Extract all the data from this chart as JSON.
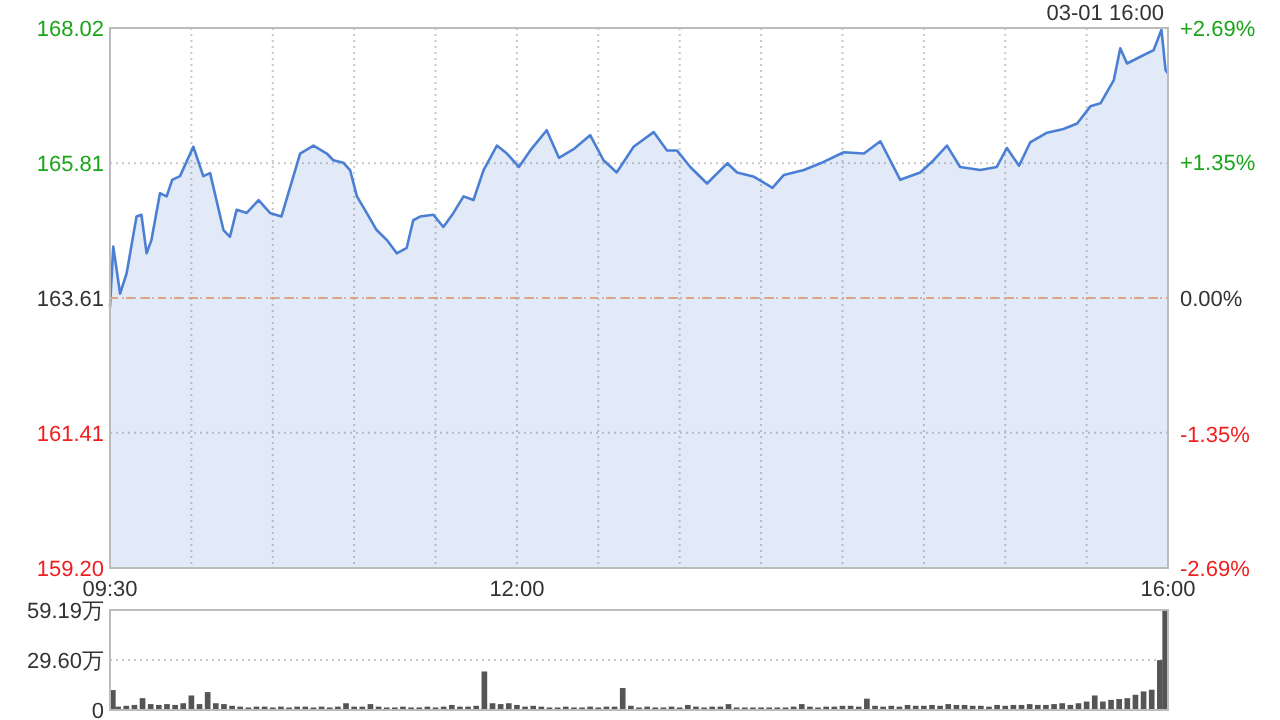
{
  "chart_data": [
    {
      "type": "area",
      "annotations": [
        "03-01 16:00"
      ],
      "x": [
        9.5,
        9.52,
        9.562,
        9.602,
        9.663,
        9.693,
        9.725,
        9.755,
        9.807,
        9.848,
        9.882,
        9.93,
        10.012,
        10.073,
        10.115,
        10.197,
        10.237,
        10.278,
        10.34,
        10.413,
        10.483,
        10.553,
        10.627,
        10.668,
        10.75,
        10.832,
        10.872,
        10.933,
        10.975,
        11.017,
        11.077,
        11.138,
        11.2,
        11.262,
        11.323,
        11.363,
        11.405,
        11.487,
        11.548,
        11.61,
        11.672,
        11.733,
        11.795,
        11.877,
        11.938,
        12.012,
        12.082,
        12.183,
        12.258,
        12.348,
        12.45,
        12.532,
        12.613,
        12.717,
        12.84,
        12.922,
        12.983,
        13.065,
        13.168,
        13.292,
        13.353,
        13.457,
        13.57,
        13.64,
        13.763,
        13.865,
        14.008,
        14.132,
        14.233,
        14.355,
        14.478,
        14.56,
        14.642,
        14.723,
        14.847,
        14.948,
        15.01,
        15.085,
        15.153,
        15.257,
        15.358,
        15.442,
        15.523,
        15.585,
        15.667,
        15.707,
        15.748,
        15.83,
        15.912,
        15.96,
        15.985,
        16
      ],
      "series": [
        {
          "color": "#4a7fd4",
          "values": [
            163.47,
            164.45,
            163.68,
            164.01,
            164.94,
            164.97,
            164.34,
            164.56,
            165.32,
            165.27,
            165.54,
            165.6,
            166.08,
            165.6,
            165.65,
            164.72,
            164.61,
            165.05,
            165.0,
            165.21,
            165.0,
            164.94,
            165.6,
            165.97,
            166.1,
            165.97,
            165.86,
            165.82,
            165.7,
            165.27,
            165.0,
            164.72,
            164.56,
            164.34,
            164.43,
            164.88,
            164.94,
            164.97,
            164.77,
            165.0,
            165.27,
            165.21,
            165.7,
            166.1,
            165.97,
            165.75,
            166.02,
            166.35,
            165.9,
            166.04,
            166.27,
            165.86,
            165.66,
            166.08,
            166.32,
            166.02,
            166.02,
            165.75,
            165.48,
            165.81,
            165.66,
            165.59,
            165.41,
            165.62,
            165.7,
            165.81,
            165.99,
            165.97,
            166.17,
            165.54,
            165.66,
            165.86,
            166.1,
            165.75,
            165.7,
            165.75,
            166.06,
            165.77,
            166.15,
            166.31,
            166.37,
            166.46,
            166.74,
            166.79,
            167.17,
            167.69,
            167.44,
            167.55,
            167.66,
            167.99,
            167.33,
            167.28
          ]
        }
      ],
      "xlim": [
        9.5,
        16
      ],
      "xticks": [
        {
          "value": 9.5,
          "label": "09:30"
        },
        {
          "value": 10,
          "label": null
        },
        {
          "value": 10.5,
          "label": null
        },
        {
          "value": 11,
          "label": null
        },
        {
          "value": 11.5,
          "label": null
        },
        {
          "value": 12,
          "label": "12:00"
        },
        {
          "value": 12.5,
          "label": null
        },
        {
          "value": 13,
          "label": null
        },
        {
          "value": 13.5,
          "label": null
        },
        {
          "value": 14,
          "label": null
        },
        {
          "value": 14.5,
          "label": null
        },
        {
          "value": 15,
          "label": null
        },
        {
          "value": 15.5,
          "label": null
        },
        {
          "value": 16,
          "label": "16:00"
        }
      ],
      "ylim": [
        159.2,
        168.02
      ],
      "yticks": [
        {
          "value": 159.2,
          "label": "159.20"
        },
        161.41,
        163.61,
        165.81,
        168.02
      ],
      "y2lim": [
        -2.69,
        2.69
      ],
      "y2ticks": [
        {
          "value": -2.69,
          "label": "-2.69%"
        },
        {
          "value": -1.35,
          "label": "-1.35%"
        },
        {
          "value": 0,
          "label": "0.00%"
        },
        {
          "value": 1.35,
          "label": "+1.35%"
        },
        {
          "value": 2.69,
          "label": "+2.69%"
        }
      ],
      "ref_lines": [
        {
          "axis": "y",
          "value": 163.61,
          "color": "#e8a07a",
          "line_style": "dashed"
        }
      ],
      "grid": true
    },
    {
      "type": "bar",
      "color": "#555555",
      "tick_labels": "y",
      "grid": "y",
      "x": [
        9.5,
        9.55,
        9.6,
        9.65,
        9.7,
        9.75,
        9.8,
        9.85,
        9.9,
        9.95,
        10,
        10.05,
        10.1,
        10.15,
        10.2,
        10.25,
        10.3,
        10.35,
        10.4,
        10.45,
        10.5,
        10.55,
        10.6,
        10.65,
        10.7,
        10.75,
        10.8,
        10.85,
        10.9,
        10.95,
        11,
        11.05,
        11.1,
        11.15,
        11.2,
        11.25,
        11.3,
        11.35,
        11.4,
        11.45,
        11.5,
        11.55,
        11.6,
        11.65,
        11.7,
        11.75,
        11.8,
        11.85,
        11.9,
        11.95,
        12,
        12.05,
        12.1,
        12.15,
        12.2,
        12.25,
        12.3,
        12.35,
        12.4,
        12.45,
        12.5,
        12.55,
        12.6,
        12.65,
        12.7,
        12.75,
        12.8,
        12.85,
        12.9,
        12.95,
        13,
        13.05,
        13.1,
        13.15,
        13.2,
        13.25,
        13.3,
        13.35,
        13.4,
        13.45,
        13.5,
        13.55,
        13.6,
        13.65,
        13.7,
        13.75,
        13.8,
        13.85,
        13.9,
        13.95,
        14,
        14.05,
        14.1,
        14.15,
        14.2,
        14.25,
        14.3,
        14.35,
        14.4,
        14.45,
        14.5,
        14.55,
        14.6,
        14.65,
        14.7,
        14.75,
        14.8,
        14.85,
        14.9,
        14.95,
        15,
        15.05,
        15.1,
        15.15,
        15.2,
        15.25,
        15.3,
        15.35,
        15.4,
        15.45,
        15.5,
        15.55,
        15.6,
        15.65,
        15.7,
        15.75,
        15.8,
        15.85,
        15.9,
        15.95,
        16
      ],
      "values": [
        11.8,
        2,
        2.5,
        3,
        7,
        3.5,
        3,
        3.5,
        3,
        4,
        8.6,
        3.5,
        10.6,
        4,
        3.5,
        2.5,
        2,
        1.5,
        2,
        2,
        1.5,
        2,
        1.5,
        2,
        2,
        1.5,
        2,
        1.5,
        2,
        4,
        2,
        2,
        3.5,
        2,
        1.5,
        1.5,
        2,
        1.5,
        1.5,
        2,
        1.5,
        2,
        3,
        2,
        2,
        2.5,
        22.8,
        4,
        3.5,
        4,
        3,
        2,
        2.5,
        2,
        1.5,
        1.5,
        2,
        1.5,
        1.5,
        2,
        1.5,
        2,
        2,
        13,
        2.5,
        1.5,
        2,
        1.5,
        1.5,
        2,
        1.5,
        3,
        2,
        1.5,
        2,
        2,
        3.5,
        1.5,
        1.5,
        1.5,
        1.5,
        1.5,
        1.5,
        1.5,
        2,
        3.5,
        2,
        1.5,
        2,
        2,
        2.5,
        2.5,
        2,
        6.7,
        2.5,
        2,
        2.5,
        2,
        3,
        2.5,
        2.5,
        3,
        2.5,
        3.5,
        3,
        3,
        2.5,
        2.5,
        2,
        3,
        2.5,
        3,
        3,
        3.5,
        3,
        3,
        3.5,
        4,
        3,
        4,
        5,
        8.6,
        5,
        6,
        6.5,
        7,
        9,
        11,
        12,
        29.5,
        59.19
      ],
      "xlim": [
        9.5,
        16
      ],
      "ylim": [
        0,
        59.19
      ],
      "yticks": [
        0,
        {
          "value": 29.6,
          "label": "29.60万"
        },
        {
          "value": 59.19,
          "label": "59.19万"
        }
      ]
    }
  ]
}
